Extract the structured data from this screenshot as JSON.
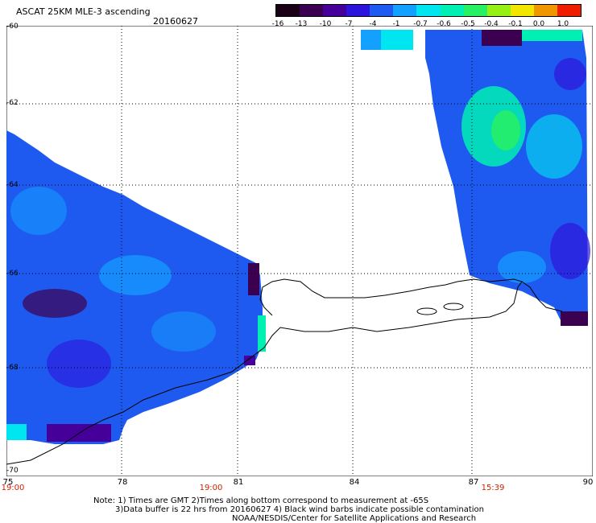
{
  "title": "ASCAT 25KM MLE-3 ascending",
  "date": "20160627",
  "colorbar": {
    "labels": [
      "-16",
      "-13",
      "-10",
      "-7",
      "-4",
      "-1",
      "-0.7",
      "-0.6",
      "-0.5",
      "-0.4",
      "-0.1",
      "0.0",
      "1.0"
    ],
    "colors": [
      "#1a0014",
      "#3c0050",
      "#46009a",
      "#2d14dc",
      "#1e5af0",
      "#14a0ff",
      "#00e6f0",
      "#00f0b4",
      "#28f064",
      "#96f014",
      "#f0e600",
      "#f09600",
      "#f01e00"
    ]
  },
  "lat_labels": [
    "-60",
    "-62",
    "-64",
    "-66",
    "-68",
    "-70"
  ],
  "lon_labels": [
    "75",
    "78",
    "81",
    "84",
    "87",
    "90"
  ],
  "time_labels": [
    "19:00",
    "19:00",
    "15:39"
  ],
  "notes": {
    "line1": "Note: 1) Times are GMT 2)Times along bottom correspond to measurement at -65S",
    "line2": "3)Data buffer is 22 hrs from 20160627 4) Black wind barbs indicate possible contamination",
    "line3": "NOAA/NESDIS/Center for Satellite Applications and Research"
  }
}
